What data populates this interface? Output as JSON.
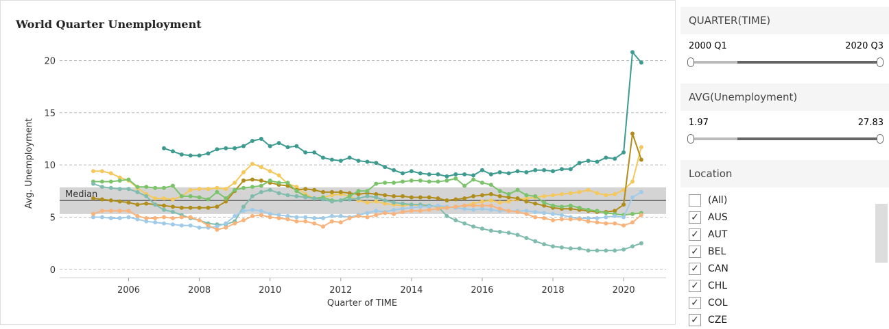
{
  "chart_data": {
    "type": "line",
    "title": "World Quarter Unemployment",
    "xlabel": "Quarter of TIME",
    "ylabel": "Avg. Unemployment",
    "x": [
      2005,
      2005.25,
      2005.5,
      2005.75,
      2006,
      2006.25,
      2006.5,
      2006.75,
      2007,
      2007.25,
      2007.5,
      2007.75,
      2008,
      2008.25,
      2008.5,
      2008.75,
      2009,
      2009.25,
      2009.5,
      2009.75,
      2010,
      2010.25,
      2010.5,
      2010.75,
      2011,
      2011.25,
      2011.5,
      2011.75,
      2012,
      2012.25,
      2012.5,
      2012.75,
      2013,
      2013.25,
      2013.5,
      2013.75,
      2014,
      2014.25,
      2014.5,
      2014.75,
      2015,
      2015.25,
      2015.5,
      2015.75,
      2016,
      2016.25,
      2016.5,
      2016.75,
      2017,
      2017.25,
      2017.5,
      2017.75,
      2018,
      2018.25,
      2018.5,
      2018.75,
      2019,
      2019.25,
      2019.5,
      2019.75,
      2020,
      2020.25,
      2020.5
    ],
    "series": [
      {
        "color": "#3d9a8f",
        "values": [
          null,
          null,
          null,
          null,
          null,
          null,
          null,
          null,
          11.6,
          11.3,
          11.0,
          10.9,
          10.9,
          11.1,
          11.5,
          11.6,
          11.6,
          11.8,
          12.3,
          12.5,
          11.8,
          12.1,
          11.7,
          11.8,
          11.2,
          11.2,
          10.7,
          10.5,
          10.4,
          10.7,
          10.4,
          10.3,
          10.2,
          9.8,
          9.5,
          9.2,
          9.4,
          9.2,
          9.1,
          9.1,
          8.9,
          9.1,
          9.1,
          9.0,
          9.5,
          9.1,
          9.3,
          9.2,
          9.4,
          9.3,
          9.5,
          9.5,
          9.4,
          9.6,
          9.6,
          10.2,
          10.4,
          10.3,
          10.7,
          10.6,
          11.2,
          20.8,
          19.8
        ]
      },
      {
        "color": "#f5c85c",
        "values": [
          9.4,
          9.4,
          9.2,
          8.8,
          8.5,
          7.8,
          7.2,
          6.8,
          6.8,
          6.7,
          7.0,
          7.6,
          7.7,
          7.7,
          7.8,
          7.7,
          8.3,
          9.3,
          10.1,
          9.8,
          9.4,
          9.0,
          8.2,
          7.9,
          7.2,
          6.8,
          6.9,
          7.1,
          7.2,
          7.0,
          6.6,
          6.4,
          6.5,
          6.3,
          6.2,
          6.1,
          6.2,
          6.1,
          6.0,
          6.0,
          5.9,
          6.0,
          6.1,
          6.3,
          6.5,
          6.6,
          6.4,
          6.5,
          6.7,
          6.8,
          6.9,
          7.0,
          7.1,
          7.2,
          7.3,
          7.4,
          7.6,
          7.3,
          7.1,
          7.2,
          7.6,
          8.4,
          11.7
        ]
      },
      {
        "color": "#b08d1a",
        "values": [
          6.8,
          6.7,
          6.6,
          6.5,
          6.4,
          6.2,
          6.3,
          6.2,
          6.1,
          6.0,
          5.9,
          5.9,
          5.9,
          5.9,
          6.0,
          6.5,
          7.5,
          8.5,
          8.6,
          8.5,
          8.3,
          8.1,
          8.0,
          7.6,
          7.7,
          7.6,
          7.4,
          7.4,
          7.4,
          7.3,
          7.2,
          7.3,
          7.2,
          7.1,
          7.0,
          7.0,
          6.9,
          6.9,
          6.9,
          6.8,
          6.6,
          6.7,
          6.8,
          7.0,
          7.1,
          7.2,
          7.0,
          6.9,
          6.8,
          6.5,
          6.3,
          6.1,
          5.9,
          5.8,
          5.8,
          5.7,
          5.6,
          5.5,
          5.5,
          5.6,
          6.2,
          13.0,
          10.5
        ]
      },
      {
        "color": "#7ac36a",
        "values": [
          8.4,
          8.4,
          8.4,
          8.5,
          8.6,
          7.9,
          7.9,
          7.8,
          7.8,
          8.0,
          7.0,
          7.0,
          6.9,
          6.7,
          7.4,
          6.8,
          7.6,
          7.8,
          7.9,
          8.0,
          8.5,
          8.3,
          8.3,
          7.5,
          7.0,
          6.8,
          6.9,
          6.6,
          6.6,
          7.0,
          7.5,
          7.5,
          8.2,
          8.3,
          8.3,
          8.4,
          8.5,
          8.5,
          8.4,
          8.4,
          8.5,
          8.7,
          8.0,
          8.6,
          8.3,
          8.1,
          7.5,
          7.2,
          7.6,
          7.1,
          7.0,
          6.4,
          6.1,
          6.0,
          6.1,
          5.9,
          5.7,
          5.6,
          5.4,
          5.3,
          5.2,
          5.3,
          5.4
        ]
      },
      {
        "color": "#7fbcae",
        "values": [
          8.2,
          7.9,
          7.8,
          7.7,
          7.7,
          7.4,
          7.0,
          6.2,
          5.7,
          5.5,
          5.2,
          4.9,
          4.7,
          4.4,
          4.3,
          4.3,
          4.6,
          6.0,
          7.0,
          7.4,
          7.6,
          7.3,
          7.1,
          7.0,
          6.9,
          6.8,
          6.7,
          6.5,
          6.6,
          6.7,
          6.8,
          7.0,
          6.9,
          6.6,
          6.4,
          6.3,
          6.2,
          6.2,
          6.1,
          6.0,
          5.1,
          4.7,
          4.4,
          4.1,
          3.9,
          3.7,
          3.6,
          3.5,
          3.3,
          3.0,
          2.7,
          2.4,
          2.2,
          2.1,
          2.0,
          2.0,
          1.8,
          1.8,
          1.8,
          1.8,
          1.9,
          2.2,
          2.5
        ]
      },
      {
        "color": "#a0cbe8",
        "values": [
          5.0,
          5.0,
          4.9,
          4.9,
          5.0,
          4.8,
          4.6,
          4.5,
          4.4,
          4.3,
          4.2,
          4.2,
          4.0,
          4.0,
          4.1,
          4.4,
          5.1,
          5.6,
          5.7,
          5.6,
          5.3,
          5.2,
          5.1,
          5.0,
          5.0,
          4.9,
          4.9,
          5.1,
          5.1,
          5.0,
          5.2,
          5.4,
          5.6,
          5.5,
          5.7,
          5.8,
          5.9,
          6.0,
          6.0,
          6.1,
          6.0,
          5.9,
          5.8,
          5.7,
          5.8,
          5.7,
          5.6,
          5.6,
          5.6,
          5.6,
          5.5,
          5.4,
          5.3,
          5.2,
          5.0,
          4.9,
          4.9,
          4.9,
          5.0,
          5.1,
          5.0,
          6.9,
          7.4
        ]
      },
      {
        "color": "#f8b27a",
        "values": [
          5.3,
          5.6,
          5.6,
          5.6,
          5.6,
          5.1,
          4.9,
          4.9,
          5.0,
          4.9,
          5.0,
          5.0,
          4.7,
          4.2,
          3.8,
          4.0,
          4.4,
          4.7,
          5.1,
          5.2,
          5.0,
          4.9,
          4.8,
          4.6,
          4.6,
          4.4,
          4.1,
          4.6,
          4.5,
          4.9,
          5.1,
          5.0,
          5.2,
          5.4,
          5.3,
          5.5,
          5.6,
          5.6,
          5.7,
          5.8,
          5.9,
          6.0,
          6.1,
          6.1,
          6.1,
          6.1,
          5.8,
          5.6,
          5.5,
          5.3,
          5.0,
          4.9,
          4.7,
          4.8,
          4.8,
          4.8,
          4.6,
          4.5,
          4.4,
          4.4,
          4.2,
          4.5,
          5.2
        ]
      }
    ],
    "xlim": [
      2004.05,
      2021.2
    ],
    "ylim": [
      -0.8,
      21.8
    ],
    "xticks": [
      2006,
      2008,
      2010,
      2012,
      2014,
      2016,
      2018,
      2020
    ],
    "yticks": [
      0,
      5,
      10,
      15,
      20
    ],
    "grid": true,
    "reference_line": {
      "label": "Median",
      "value": 6.6,
      "band": [
        5.3,
        7.85
      ]
    }
  },
  "filters": [
    {
      "title": "QUARTER(TIME)",
      "min_label": "2000 Q1",
      "max_label": "2020 Q3"
    },
    {
      "title": "AVG(Unemployment)",
      "min_label": "1.97",
      "max_label": "27.83"
    }
  ],
  "location": {
    "title": "Location",
    "items": [
      "(All)",
      "AUS",
      "AUT",
      "BEL",
      "CAN",
      "CHL",
      "COL",
      "CZE"
    ],
    "checked": [
      false,
      true,
      true,
      true,
      true,
      true,
      true,
      true
    ]
  }
}
